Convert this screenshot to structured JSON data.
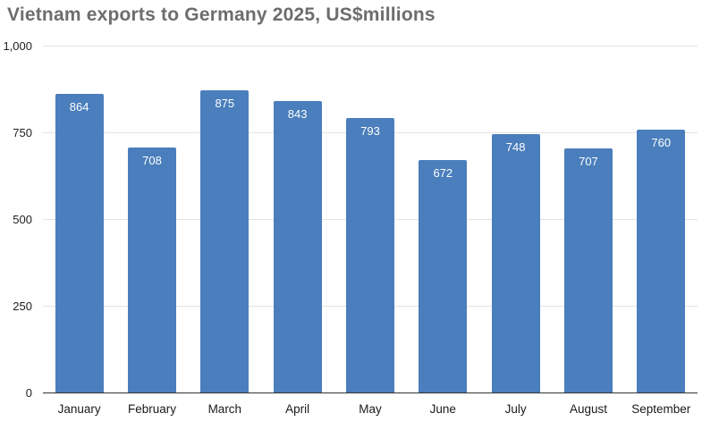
{
  "chart_data": {
    "type": "bar",
    "title": "Vietnam exports to Germany 2025, US$millions",
    "categories": [
      "January",
      "February",
      "March",
      "April",
      "May",
      "June",
      "July",
      "August",
      "September"
    ],
    "values": [
      864,
      708,
      875,
      843,
      793,
      672,
      748,
      707,
      760
    ],
    "xlabel": "",
    "ylabel": "",
    "ylim": [
      0,
      1000
    ],
    "yticks": [
      0,
      250,
      500,
      750,
      1000
    ],
    "ytick_labels": [
      "0",
      "250",
      "500",
      "750",
      "1,000"
    ],
    "grid": true,
    "legend": "none",
    "colors": {
      "bar": "#4a7ebc",
      "bar_value_label": "#ffffff",
      "title": "#6d6d6d",
      "gridline": "#e3e3e3",
      "axis_line": "#333333",
      "tick_label": "#222222"
    }
  }
}
